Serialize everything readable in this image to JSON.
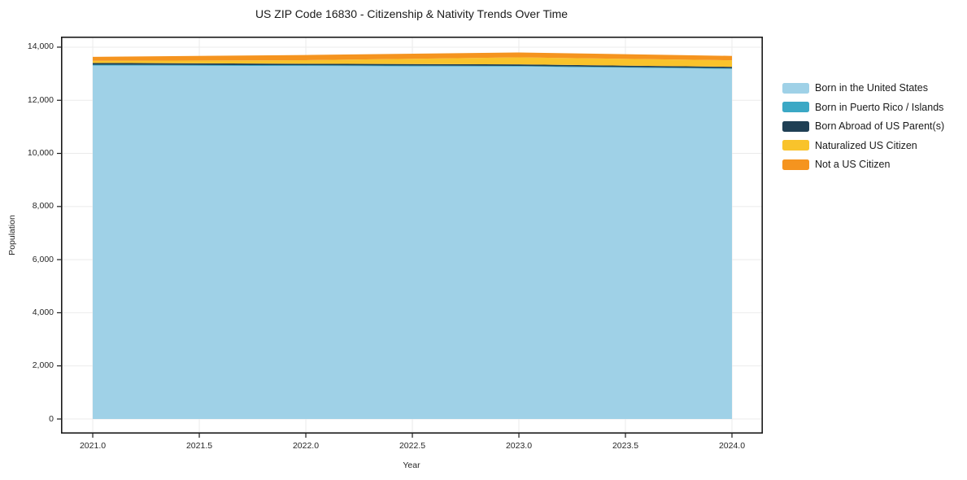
{
  "chart_data": {
    "type": "area",
    "stacked": true,
    "title": "US ZIP Code 16830 - Citizenship & Nativity Trends Over Time",
    "xlabel": "Year",
    "ylabel": "Population",
    "x": [
      2021,
      2022,
      2023,
      2024
    ],
    "series": [
      {
        "name": "Born in the United States",
        "color": "#9fd1e7",
        "values": [
          13310,
          13290,
          13270,
          13180
        ]
      },
      {
        "name": "Born in Puerto Rico / Islands",
        "color": "#3ba8c5",
        "values": [
          30,
          30,
          25,
          25
        ]
      },
      {
        "name": "Born Abroad of US Parent(s)",
        "color": "#1f3f54",
        "values": [
          65,
          55,
          55,
          55
        ]
      },
      {
        "name": "Naturalized US Citizen",
        "color": "#f9c32b",
        "values": [
          80,
          135,
          265,
          245
        ]
      },
      {
        "name": "Not a US Citizen",
        "color": "#f5941f",
        "values": [
          150,
          195,
          185,
          165
        ]
      }
    ],
    "xlim": [
      2020.851,
      2024.145
    ],
    "ylim": [
      -551,
      14397
    ],
    "xticks": {
      "values": [
        2021.0,
        2021.5,
        2022.0,
        2022.5,
        2023.0,
        2023.5,
        2024.0
      ],
      "labels": [
        "2021.0",
        "2021.5",
        "2022.0",
        "2022.5",
        "2023.0",
        "2023.5",
        "2024.0"
      ]
    },
    "yticks": {
      "values": [
        0,
        2000,
        4000,
        6000,
        8000,
        10000,
        12000,
        14000
      ],
      "labels": [
        "0",
        "2,000",
        "4,000",
        "6,000",
        "8,000",
        "10,000",
        "12,000",
        "14,000"
      ]
    },
    "grid": true,
    "grid_color": "#ebebeb",
    "spine_color": "#1a1a1a",
    "legend_position": "right"
  }
}
